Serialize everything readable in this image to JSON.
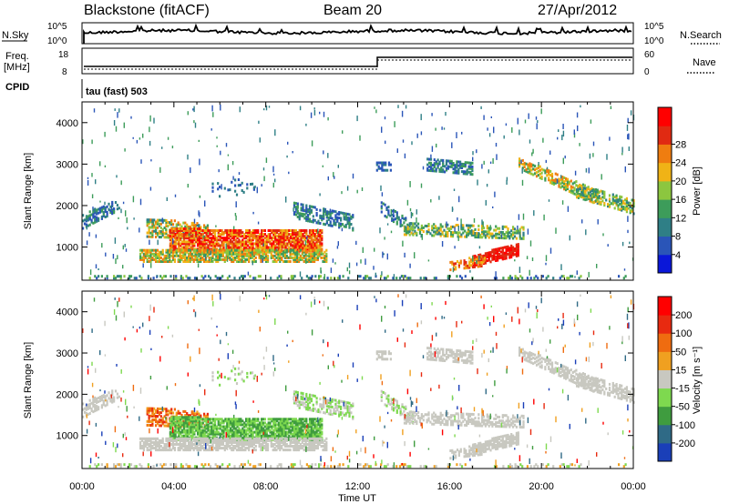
{
  "header": {
    "site": "Blackstone (fitACF)",
    "beam": "Beam 20",
    "date": "27/Apr/2012"
  },
  "summary_panels": {
    "nsky_label": "N.Sky",
    "nsearch_label": "N.Search",
    "nsky_ticks": [
      "10^5",
      "10^0"
    ],
    "freq_label": "Freq.",
    "freq_unit": "[MHz]",
    "freq_ticks": [
      "18",
      "8"
    ],
    "nave_label": "Nave",
    "nave_ticks": [
      "60",
      "0"
    ],
    "cpid_label": "CPID",
    "cpid_value": "tau (fast) 503"
  },
  "chart_data": [
    {
      "type": "heatmap",
      "name_shown": "",
      "xlabel": "",
      "ylabel": "Slant Range [km]",
      "x_range_hours": [
        0,
        24
      ],
      "ylim": [
        200,
        4500
      ],
      "yticks": [
        "1000",
        "2000",
        "3000",
        "4000"
      ],
      "colorbar": {
        "label": "Power [dB]",
        "ticks": [
          "28",
          "24",
          "20",
          "16",
          "12",
          "8",
          "4"
        ],
        "colors": [
          "#0a17d9",
          "#2a55b8",
          "#2f7f86",
          "#3d9c5a",
          "#8cc63f",
          "#f0b316",
          "#ef7d10",
          "#e02a12",
          "#ff0000"
        ]
      },
      "features": [
        {
          "region": "band 00:00-01:30",
          "range_km": [
            1500,
            2100
          ],
          "value": "6-10 dB"
        },
        {
          "region": "main echo 03:00-10:30",
          "range_km": [
            700,
            1600
          ],
          "value": "20-30 dB"
        },
        {
          "region": "band 13:00-16:30",
          "range_km": [
            1200,
            2000
          ],
          "value": "8-14 dB"
        },
        {
          "region": "patch 17:00-19:00",
          "range_km": [
            500,
            900
          ],
          "value": "24-30 dB"
        },
        {
          "region": "band 15:00-17:00",
          "range_km": [
            2800,
            3200
          ],
          "value": "6-10 dB"
        },
        {
          "region": "band 19:00-24:00",
          "range_km": [
            1900,
            3200
          ],
          "value": "8-20 dB"
        }
      ]
    },
    {
      "type": "heatmap",
      "xlabel": "Time UT",
      "ylabel": "Slant Range [km]",
      "x_range_hours": [
        0,
        24
      ],
      "ylim": [
        200,
        4500
      ],
      "xticks": [
        "00:00",
        "04:00",
        "08:00",
        "12:00",
        "16:00",
        "20:00",
        "00:00"
      ],
      "yticks": [
        "1000",
        "2000",
        "3000",
        "4000"
      ],
      "colorbar": {
        "label": "Velocity [m s⁻¹]",
        "ticks": [
          "200",
          "100",
          "50",
          "15",
          "-15",
          "-50",
          "-100",
          "-200"
        ],
        "colors": [
          "#1a3fb8",
          "#2f6a86",
          "#3f9c3f",
          "#7ed94f",
          "#c8c8c0",
          "#f0a020",
          "#ef6c10",
          "#e82a10",
          "#ff0000"
        ]
      }
    }
  ]
}
